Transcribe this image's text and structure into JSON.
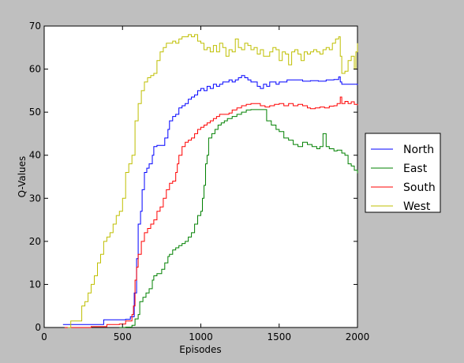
{
  "chart_data": {
    "type": "line",
    "title": "",
    "xlabel": "Episodes",
    "ylabel": "Q-Values",
    "xlim": [
      0,
      2000
    ],
    "ylim": [
      0,
      70
    ],
    "xticks": [
      0,
      500,
      1000,
      1500,
      2000
    ],
    "yticks": [
      0,
      10,
      20,
      30,
      40,
      50,
      60,
      70
    ],
    "grid": false,
    "legend_position": "right",
    "series": [
      {
        "name": "North",
        "color": "#0000ff",
        "points": [
          [
            120,
            0.7
          ],
          [
            150,
            0.7
          ],
          [
            180,
            0.7
          ],
          [
            250,
            0.7
          ],
          [
            300,
            0.7
          ],
          [
            380,
            1.8
          ],
          [
            450,
            1.8
          ],
          [
            520,
            1.9
          ],
          [
            550,
            2.5
          ],
          [
            575,
            8
          ],
          [
            590,
            16
          ],
          [
            600,
            24
          ],
          [
            615,
            27
          ],
          [
            625,
            32
          ],
          [
            640,
            36
          ],
          [
            655,
            37
          ],
          [
            670,
            38
          ],
          [
            690,
            40
          ],
          [
            700,
            42
          ],
          [
            720,
            42.3
          ],
          [
            750,
            42.3
          ],
          [
            770,
            44
          ],
          [
            790,
            46
          ],
          [
            800,
            48
          ],
          [
            820,
            49
          ],
          [
            840,
            49.5
          ],
          [
            860,
            51
          ],
          [
            880,
            51.5
          ],
          [
            900,
            52
          ],
          [
            920,
            53
          ],
          [
            940,
            53.5
          ],
          [
            960,
            54
          ],
          [
            980,
            55
          ],
          [
            1000,
            55.5
          ],
          [
            1020,
            55
          ],
          [
            1040,
            56
          ],
          [
            1060,
            55.5
          ],
          [
            1080,
            56.5
          ],
          [
            1100,
            56
          ],
          [
            1120,
            56.5
          ],
          [
            1140,
            57
          ],
          [
            1160,
            57
          ],
          [
            1180,
            57.5
          ],
          [
            1200,
            57
          ],
          [
            1220,
            57.5
          ],
          [
            1240,
            58
          ],
          [
            1260,
            58.5
          ],
          [
            1280,
            58
          ],
          [
            1300,
            57.5
          ],
          [
            1320,
            57
          ],
          [
            1340,
            57
          ],
          [
            1360,
            56
          ],
          [
            1380,
            55.5
          ],
          [
            1400,
            56.5
          ],
          [
            1420,
            56
          ],
          [
            1440,
            57
          ],
          [
            1460,
            57
          ],
          [
            1480,
            56.5
          ],
          [
            1500,
            57
          ],
          [
            1550,
            57.5
          ],
          [
            1600,
            57.5
          ],
          [
            1650,
            57.2
          ],
          [
            1700,
            57.3
          ],
          [
            1750,
            57.2
          ],
          [
            1800,
            57.5
          ],
          [
            1850,
            57.6
          ],
          [
            1880,
            58.2
          ],
          [
            1890,
            57
          ],
          [
            1900,
            56.5
          ],
          [
            1950,
            56.5
          ],
          [
            2000,
            56.3
          ]
        ]
      },
      {
        "name": "East",
        "color": "#008000",
        "points": [
          [
            480,
            0
          ],
          [
            520,
            0.1
          ],
          [
            560,
            0.5
          ],
          [
            580,
            2
          ],
          [
            600,
            3
          ],
          [
            610,
            6
          ],
          [
            630,
            7
          ],
          [
            650,
            8
          ],
          [
            670,
            9
          ],
          [
            690,
            11
          ],
          [
            700,
            12
          ],
          [
            720,
            12.5
          ],
          [
            750,
            13.5
          ],
          [
            770,
            15
          ],
          [
            790,
            16.5
          ],
          [
            800,
            17
          ],
          [
            820,
            18
          ],
          [
            840,
            18.5
          ],
          [
            860,
            19
          ],
          [
            880,
            19.5
          ],
          [
            900,
            20
          ],
          [
            920,
            21
          ],
          [
            940,
            22
          ],
          [
            960,
            24
          ],
          [
            980,
            26
          ],
          [
            1000,
            27
          ],
          [
            1010,
            30
          ],
          [
            1020,
            33
          ],
          [
            1030,
            38
          ],
          [
            1040,
            40
          ],
          [
            1050,
            44
          ],
          [
            1070,
            45
          ],
          [
            1090,
            46
          ],
          [
            1110,
            47
          ],
          [
            1130,
            47.5
          ],
          [
            1150,
            48
          ],
          [
            1170,
            48.5
          ],
          [
            1200,
            49
          ],
          [
            1230,
            49.5
          ],
          [
            1260,
            50
          ],
          [
            1290,
            50.5
          ],
          [
            1320,
            50.6
          ],
          [
            1350,
            50.6
          ],
          [
            1400,
            50.6
          ],
          [
            1420,
            48
          ],
          [
            1450,
            47
          ],
          [
            1480,
            46
          ],
          [
            1500,
            45.5
          ],
          [
            1530,
            44
          ],
          [
            1560,
            43.5
          ],
          [
            1590,
            42.5
          ],
          [
            1620,
            42
          ],
          [
            1650,
            43
          ],
          [
            1680,
            42.5
          ],
          [
            1710,
            42
          ],
          [
            1740,
            41.5
          ],
          [
            1760,
            42
          ],
          [
            1780,
            45
          ],
          [
            1800,
            42
          ],
          [
            1820,
            41.5
          ],
          [
            1850,
            41
          ],
          [
            1870,
            41.2
          ],
          [
            1900,
            40.5
          ],
          [
            1920,
            40
          ],
          [
            1940,
            38
          ],
          [
            1960,
            37.5
          ],
          [
            1980,
            36.5
          ],
          [
            2000,
            35.8
          ]
        ]
      },
      {
        "name": "South",
        "color": "#ff0000",
        "points": [
          [
            130,
            0
          ],
          [
            200,
            0
          ],
          [
            300,
            0.2
          ],
          [
            400,
            0.7
          ],
          [
            480,
            0.8
          ],
          [
            520,
            1.5
          ],
          [
            560,
            3
          ],
          [
            570,
            5
          ],
          [
            580,
            11
          ],
          [
            590,
            14
          ],
          [
            600,
            17
          ],
          [
            620,
            20
          ],
          [
            640,
            22
          ],
          [
            660,
            23
          ],
          [
            680,
            24
          ],
          [
            700,
            25
          ],
          [
            720,
            27
          ],
          [
            740,
            28
          ],
          [
            760,
            30
          ],
          [
            780,
            32
          ],
          [
            800,
            33.5
          ],
          [
            820,
            34
          ],
          [
            840,
            36
          ],
          [
            850,
            38
          ],
          [
            860,
            40
          ],
          [
            880,
            42
          ],
          [
            900,
            43
          ],
          [
            920,
            43.5
          ],
          [
            940,
            44
          ],
          [
            960,
            45
          ],
          [
            980,
            46
          ],
          [
            1000,
            46.5
          ],
          [
            1020,
            47
          ],
          [
            1040,
            47.5
          ],
          [
            1060,
            48
          ],
          [
            1080,
            48.5
          ],
          [
            1100,
            49
          ],
          [
            1120,
            49.5
          ],
          [
            1150,
            49.5
          ],
          [
            1180,
            49.8
          ],
          [
            1200,
            50.5
          ],
          [
            1230,
            51
          ],
          [
            1260,
            51.5
          ],
          [
            1290,
            51.8
          ],
          [
            1320,
            52
          ],
          [
            1350,
            52
          ],
          [
            1380,
            51.5
          ],
          [
            1410,
            51.2
          ],
          [
            1440,
            51.5
          ],
          [
            1470,
            51.8
          ],
          [
            1500,
            52
          ],
          [
            1530,
            51.5
          ],
          [
            1560,
            52
          ],
          [
            1590,
            51.5
          ],
          [
            1620,
            51.8
          ],
          [
            1650,
            51.5
          ],
          [
            1680,
            51
          ],
          [
            1700,
            50.8
          ],
          [
            1730,
            51
          ],
          [
            1760,
            51.2
          ],
          [
            1790,
            51
          ],
          [
            1820,
            51.4
          ],
          [
            1850,
            51.5
          ],
          [
            1870,
            52
          ],
          [
            1890,
            53.5
          ],
          [
            1900,
            52
          ],
          [
            1920,
            52.5
          ],
          [
            1940,
            52
          ],
          [
            1960,
            52.4
          ],
          [
            1980,
            51.8
          ],
          [
            2000,
            51.6
          ]
        ]
      },
      {
        "name": "West",
        "color": "#bfbf00",
        "points": [
          [
            150,
            0
          ],
          [
            170,
            1.5
          ],
          [
            200,
            1.5
          ],
          [
            230,
            1.5
          ],
          [
            240,
            5
          ],
          [
            260,
            6
          ],
          [
            280,
            8
          ],
          [
            300,
            10
          ],
          [
            320,
            12
          ],
          [
            340,
            15
          ],
          [
            360,
            17
          ],
          [
            380,
            20
          ],
          [
            400,
            21
          ],
          [
            420,
            22
          ],
          [
            440,
            24
          ],
          [
            460,
            26
          ],
          [
            480,
            27
          ],
          [
            500,
            30
          ],
          [
            520,
            36
          ],
          [
            540,
            38
          ],
          [
            560,
            40
          ],
          [
            580,
            48
          ],
          [
            600,
            52
          ],
          [
            620,
            55
          ],
          [
            640,
            57
          ],
          [
            660,
            58
          ],
          [
            680,
            58.5
          ],
          [
            700,
            59
          ],
          [
            720,
            62
          ],
          [
            740,
            64
          ],
          [
            760,
            65
          ],
          [
            780,
            66
          ],
          [
            800,
            66
          ],
          [
            820,
            66.5
          ],
          [
            840,
            66
          ],
          [
            860,
            67
          ],
          [
            880,
            67.5
          ],
          [
            900,
            67.5
          ],
          [
            920,
            68
          ],
          [
            940,
            67.5
          ],
          [
            960,
            68
          ],
          [
            980,
            66.5
          ],
          [
            1000,
            66
          ],
          [
            1020,
            64.5
          ],
          [
            1040,
            65
          ],
          [
            1060,
            64
          ],
          [
            1080,
            65.5
          ],
          [
            1100,
            64
          ],
          [
            1120,
            66
          ],
          [
            1140,
            65
          ],
          [
            1160,
            63
          ],
          [
            1180,
            64.5
          ],
          [
            1200,
            64
          ],
          [
            1220,
            67
          ],
          [
            1240,
            65
          ],
          [
            1260,
            64.5
          ],
          [
            1280,
            66
          ],
          [
            1300,
            65.5
          ],
          [
            1320,
            64.5
          ],
          [
            1340,
            65
          ],
          [
            1360,
            63.5
          ],
          [
            1380,
            64.5
          ],
          [
            1400,
            63
          ],
          [
            1420,
            63
          ],
          [
            1440,
            64
          ],
          [
            1460,
            65
          ],
          [
            1480,
            64.5
          ],
          [
            1500,
            62
          ],
          [
            1520,
            64
          ],
          [
            1540,
            63.5
          ],
          [
            1560,
            61
          ],
          [
            1580,
            64
          ],
          [
            1600,
            64.5
          ],
          [
            1620,
            63.5
          ],
          [
            1640,
            62
          ],
          [
            1660,
            64
          ],
          [
            1680,
            63.5
          ],
          [
            1700,
            64
          ],
          [
            1720,
            64.5
          ],
          [
            1740,
            64
          ],
          [
            1760,
            63.5
          ],
          [
            1780,
            64.5
          ],
          [
            1800,
            65
          ],
          [
            1820,
            64.5
          ],
          [
            1840,
            66
          ],
          [
            1860,
            67
          ],
          [
            1880,
            67.5
          ],
          [
            1890,
            63
          ],
          [
            1900,
            59
          ],
          [
            1920,
            59.5
          ],
          [
            1940,
            62
          ],
          [
            1960,
            63
          ],
          [
            1980,
            60
          ],
          [
            1990,
            64
          ],
          [
            2000,
            66
          ]
        ]
      }
    ]
  }
}
